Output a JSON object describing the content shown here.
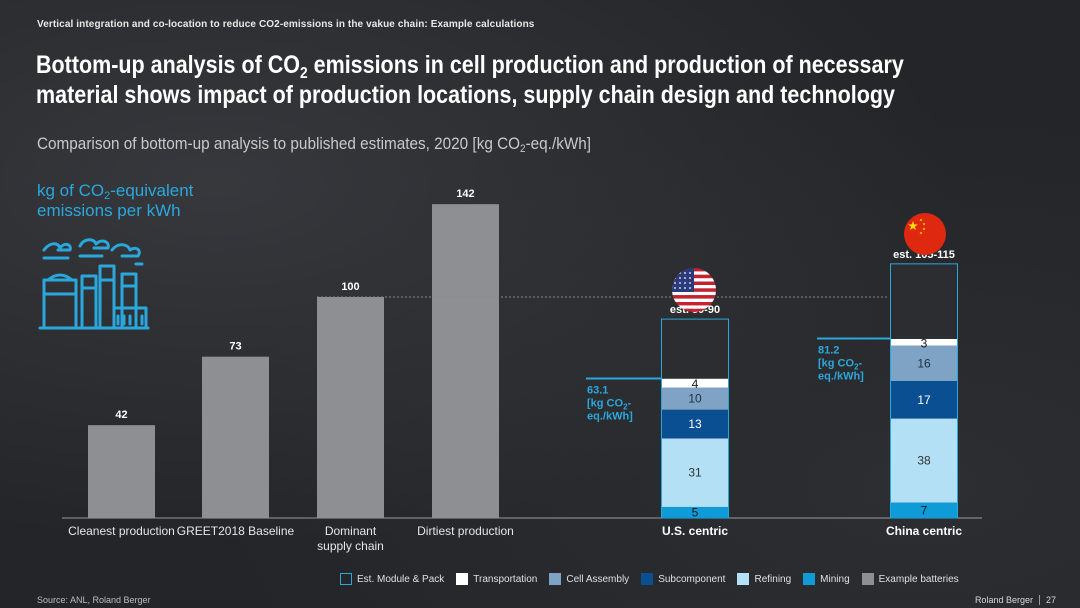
{
  "header": {
    "kicker": "Vertical integration and co-location to reduce CO2-emissions in the vakue chain: Example calculations",
    "title_line1_pre": "Bottom-up analysis of CO",
    "title_line1_sub": "2",
    "title_line1_post": " emissions in cell production and production of necessary",
    "title_line2": "material shows impact of production locations, supply chain design and technology",
    "subtitle_pre": "Comparison of bottom-up analysis to published estimates, 2020 [kg CO",
    "subtitle_sub": "2",
    "subtitle_post": "-eq./kWh]"
  },
  "ylabel": {
    "line1_pre": "kg of CO",
    "line1_sub": "2",
    "line1_post": "-equivalent",
    "line2": "emissions per kWh"
  },
  "icons": {
    "factory": "factory-icon",
    "us_flag": "us-flag-icon",
    "china_flag": "china-flag-icon"
  },
  "colors": {
    "example": "#8e8f93",
    "mining": "#0f9bd7",
    "refining": "#b3e0f5",
    "subcomponent": "#0a4f91",
    "cell_assembly": "#7ea3c5",
    "transportation": "#ffffff",
    "module_outline": "#2aa8de",
    "module_fill": "#2b2d31"
  },
  "chart_data": {
    "type": "bar",
    "ylim": [
      0,
      150
    ],
    "example_batteries": {
      "categories": [
        "Cleanest production",
        "GREET2018 Baseline",
        "Dominant supply chain",
        "Dirtiest production"
      ],
      "values": [
        42,
        73,
        100,
        142
      ],
      "labels": [
        "42",
        "73",
        "100",
        "142"
      ]
    },
    "stacked": {
      "categories": [
        "U.S. centric",
        "China centric"
      ],
      "series": [
        {
          "name": "Mining",
          "values": [
            5,
            7
          ]
        },
        {
          "name": "Refining",
          "values": [
            31,
            38
          ]
        },
        {
          "name": "Subcomponent",
          "values": [
            13,
            17
          ]
        },
        {
          "name": "Cell Assembly",
          "values": [
            10,
            16
          ]
        },
        {
          "name": "Transportation",
          "values": [
            4,
            3
          ]
        }
      ],
      "module_pack_ranges": [
        [
          80,
          90
        ],
        [
          105,
          115
        ]
      ],
      "estimate_labels": [
        "est. 80-90",
        "est. 105-115"
      ],
      "totals": [
        63.1,
        81.2
      ],
      "total_labels": [
        [
          "63.1",
          "[kg CO",
          "2",
          "-",
          "eq./kWh]"
        ],
        [
          "81.2",
          "[kg CO",
          "2",
          "-",
          "eq./kWh]"
        ]
      ]
    },
    "legend": [
      "Est. Module & Pack",
      "Transportation",
      "Cell Assembly",
      "Subcomponent",
      "Refining",
      "Mining",
      "Example batteries"
    ]
  },
  "footer": {
    "source": "Source: ANL, Roland Berger",
    "brand": "Roland Berger",
    "page": "27"
  }
}
